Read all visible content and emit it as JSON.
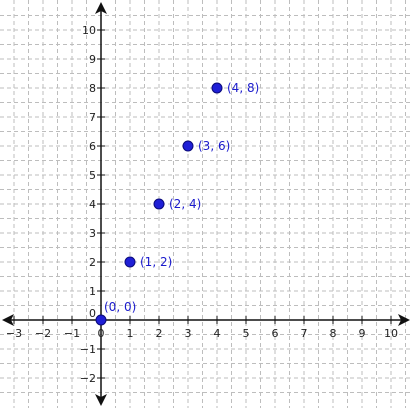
{
  "chart_data": {
    "type": "scatter",
    "title": "",
    "xlabel": "",
    "ylabel": "",
    "xlim": [
      -3.5,
      10.5
    ],
    "ylim": [
      -2.5,
      10.5
    ],
    "grid": true,
    "grid_style": "dashed",
    "axis_arrows": true,
    "x_ticks": [
      -3,
      -2,
      -1,
      0,
      1,
      2,
      3,
      4,
      5,
      6,
      7,
      8,
      9,
      10
    ],
    "y_ticks": [
      -2,
      -1,
      0,
      1,
      2,
      3,
      4,
      5,
      6,
      7,
      8,
      9,
      10
    ],
    "x_tick_labels": [
      "−3",
      "−2",
      "−1",
      "0",
      "1",
      "2",
      "3",
      "4",
      "5",
      "6",
      "7",
      "8",
      "9",
      "10"
    ],
    "y_tick_labels": [
      "−2",
      "−1",
      "0",
      "1",
      "2",
      "3",
      "4",
      "5",
      "6",
      "7",
      "8",
      "9",
      "10"
    ],
    "points": [
      {
        "x": 0,
        "y": 0,
        "label": "(0, 0)"
      },
      {
        "x": 1,
        "y": 2,
        "label": "(1, 2)"
      },
      {
        "x": 2,
        "y": 4,
        "label": "(2, 4)"
      },
      {
        "x": 3,
        "y": 6,
        "label": "(3, 6)"
      },
      {
        "x": 4,
        "y": 8,
        "label": "(4, 8)"
      }
    ],
    "colors": {
      "point_fill": "#1f1fd6",
      "point_stroke": "#0a0a7a",
      "label": "#1a1acc",
      "grid": "#bdbdbd",
      "axis": "#111111"
    }
  }
}
